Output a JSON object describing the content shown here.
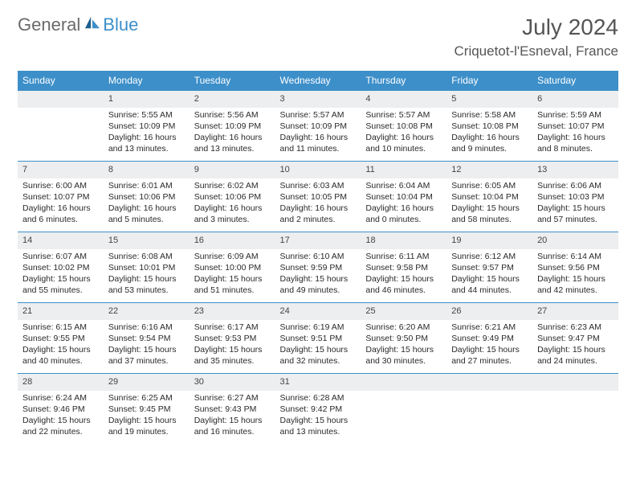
{
  "logo": {
    "word1": "General",
    "word2": "Blue"
  },
  "title": "July 2024",
  "location": "Criquetot-l'Esneval, France",
  "colors": {
    "header_bg": "#3d8fc9",
    "header_text": "#ffffff",
    "daynum_bg": "#eceeef",
    "border": "#3d8fc9",
    "title_text": "#555555",
    "body_text": "#2a2a2a"
  },
  "weekdays": [
    "Sunday",
    "Monday",
    "Tuesday",
    "Wednesday",
    "Thursday",
    "Friday",
    "Saturday"
  ],
  "layout": {
    "first_weekday_index": 1,
    "days_in_month": 31
  },
  "days": {
    "1": {
      "sunrise": "5:55 AM",
      "sunset": "10:09 PM",
      "daylight": "16 hours and 13 minutes."
    },
    "2": {
      "sunrise": "5:56 AM",
      "sunset": "10:09 PM",
      "daylight": "16 hours and 13 minutes."
    },
    "3": {
      "sunrise": "5:57 AM",
      "sunset": "10:09 PM",
      "daylight": "16 hours and 11 minutes."
    },
    "4": {
      "sunrise": "5:57 AM",
      "sunset": "10:08 PM",
      "daylight": "16 hours and 10 minutes."
    },
    "5": {
      "sunrise": "5:58 AM",
      "sunset": "10:08 PM",
      "daylight": "16 hours and 9 minutes."
    },
    "6": {
      "sunrise": "5:59 AM",
      "sunset": "10:07 PM",
      "daylight": "16 hours and 8 minutes."
    },
    "7": {
      "sunrise": "6:00 AM",
      "sunset": "10:07 PM",
      "daylight": "16 hours and 6 minutes."
    },
    "8": {
      "sunrise": "6:01 AM",
      "sunset": "10:06 PM",
      "daylight": "16 hours and 5 minutes."
    },
    "9": {
      "sunrise": "6:02 AM",
      "sunset": "10:06 PM",
      "daylight": "16 hours and 3 minutes."
    },
    "10": {
      "sunrise": "6:03 AM",
      "sunset": "10:05 PM",
      "daylight": "16 hours and 2 minutes."
    },
    "11": {
      "sunrise": "6:04 AM",
      "sunset": "10:04 PM",
      "daylight": "16 hours and 0 minutes."
    },
    "12": {
      "sunrise": "6:05 AM",
      "sunset": "10:04 PM",
      "daylight": "15 hours and 58 minutes."
    },
    "13": {
      "sunrise": "6:06 AM",
      "sunset": "10:03 PM",
      "daylight": "15 hours and 57 minutes."
    },
    "14": {
      "sunrise": "6:07 AM",
      "sunset": "10:02 PM",
      "daylight": "15 hours and 55 minutes."
    },
    "15": {
      "sunrise": "6:08 AM",
      "sunset": "10:01 PM",
      "daylight": "15 hours and 53 minutes."
    },
    "16": {
      "sunrise": "6:09 AM",
      "sunset": "10:00 PM",
      "daylight": "15 hours and 51 minutes."
    },
    "17": {
      "sunrise": "6:10 AM",
      "sunset": "9:59 PM",
      "daylight": "15 hours and 49 minutes."
    },
    "18": {
      "sunrise": "6:11 AM",
      "sunset": "9:58 PM",
      "daylight": "15 hours and 46 minutes."
    },
    "19": {
      "sunrise": "6:12 AM",
      "sunset": "9:57 PM",
      "daylight": "15 hours and 44 minutes."
    },
    "20": {
      "sunrise": "6:14 AM",
      "sunset": "9:56 PM",
      "daylight": "15 hours and 42 minutes."
    },
    "21": {
      "sunrise": "6:15 AM",
      "sunset": "9:55 PM",
      "daylight": "15 hours and 40 minutes."
    },
    "22": {
      "sunrise": "6:16 AM",
      "sunset": "9:54 PM",
      "daylight": "15 hours and 37 minutes."
    },
    "23": {
      "sunrise": "6:17 AM",
      "sunset": "9:53 PM",
      "daylight": "15 hours and 35 minutes."
    },
    "24": {
      "sunrise": "6:19 AM",
      "sunset": "9:51 PM",
      "daylight": "15 hours and 32 minutes."
    },
    "25": {
      "sunrise": "6:20 AM",
      "sunset": "9:50 PM",
      "daylight": "15 hours and 30 minutes."
    },
    "26": {
      "sunrise": "6:21 AM",
      "sunset": "9:49 PM",
      "daylight": "15 hours and 27 minutes."
    },
    "27": {
      "sunrise": "6:23 AM",
      "sunset": "9:47 PM",
      "daylight": "15 hours and 24 minutes."
    },
    "28": {
      "sunrise": "6:24 AM",
      "sunset": "9:46 PM",
      "daylight": "15 hours and 22 minutes."
    },
    "29": {
      "sunrise": "6:25 AM",
      "sunset": "9:45 PM",
      "daylight": "15 hours and 19 minutes."
    },
    "30": {
      "sunrise": "6:27 AM",
      "sunset": "9:43 PM",
      "daylight": "15 hours and 16 minutes."
    },
    "31": {
      "sunrise": "6:28 AM",
      "sunset": "9:42 PM",
      "daylight": "15 hours and 13 minutes."
    }
  },
  "labels": {
    "sunrise": "Sunrise: ",
    "sunset": "Sunset: ",
    "daylight": "Daylight: "
  }
}
